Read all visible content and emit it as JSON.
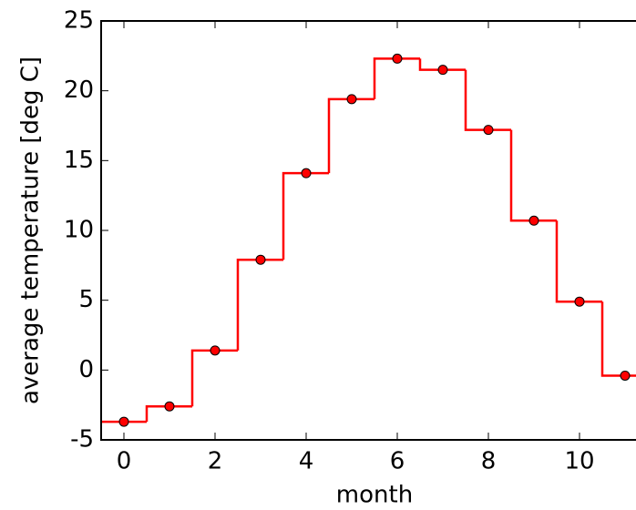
{
  "chart_data": {
    "type": "step",
    "x_label": "month",
    "y_label": "average temperature [deg C]",
    "x": [
      0,
      1,
      2,
      3,
      4,
      5,
      6,
      7,
      8,
      9,
      10,
      11
    ],
    "series": [
      {
        "color": "#ff0000",
        "values": [
          -3.7,
          -2.6,
          1.4,
          7.9,
          14.1,
          19.4,
          22.3,
          21.5,
          17.2,
          10.7,
          4.9,
          -0.4
        ]
      }
    ],
    "xlim": [
      -0.5,
      11.5
    ],
    "xticks": [
      0,
      2,
      4,
      6,
      8,
      10
    ],
    "ylim": [
      -5,
      25
    ],
    "yticks": [
      -5,
      0,
      5,
      10,
      15,
      20,
      25
    ],
    "grid": false
  }
}
